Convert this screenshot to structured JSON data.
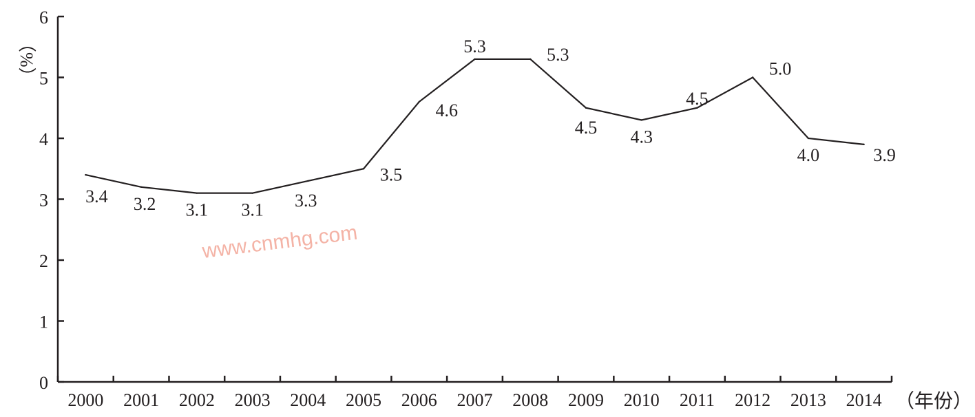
{
  "chart_data": {
    "type": "line",
    "title": "",
    "ylabel": "（%）",
    "xlabel": "（年份）",
    "categories": [
      "2000",
      "2001",
      "2002",
      "2003",
      "2004",
      "2005",
      "2006",
      "2007",
      "2008",
      "2009",
      "2010",
      "2011",
      "2012",
      "2013",
      "2014"
    ],
    "series": [
      {
        "values": [
          3.4,
          3.2,
          3.1,
          3.1,
          3.3,
          3.5,
          4.6,
          5.3,
          5.3,
          4.5,
          4.3,
          4.5,
          5.0,
          4.0,
          3.9
        ],
        "data_labels": [
          "3.4",
          "3.2",
          "3.1",
          "3.1",
          "3.3",
          "3.5",
          "4.6",
          "5.3",
          "5.3",
          "4.5",
          "4.3",
          "4.5",
          "5.0",
          "4.0",
          "3.9"
        ],
        "color": "#231f20"
      }
    ],
    "ylim": [
      0,
      6
    ],
    "yticks": [
      "0",
      "1",
      "2",
      "3",
      "4",
      "5",
      "6"
    ],
    "grid": false,
    "legend": "none"
  },
  "watermark": "www.cnmhg.com"
}
